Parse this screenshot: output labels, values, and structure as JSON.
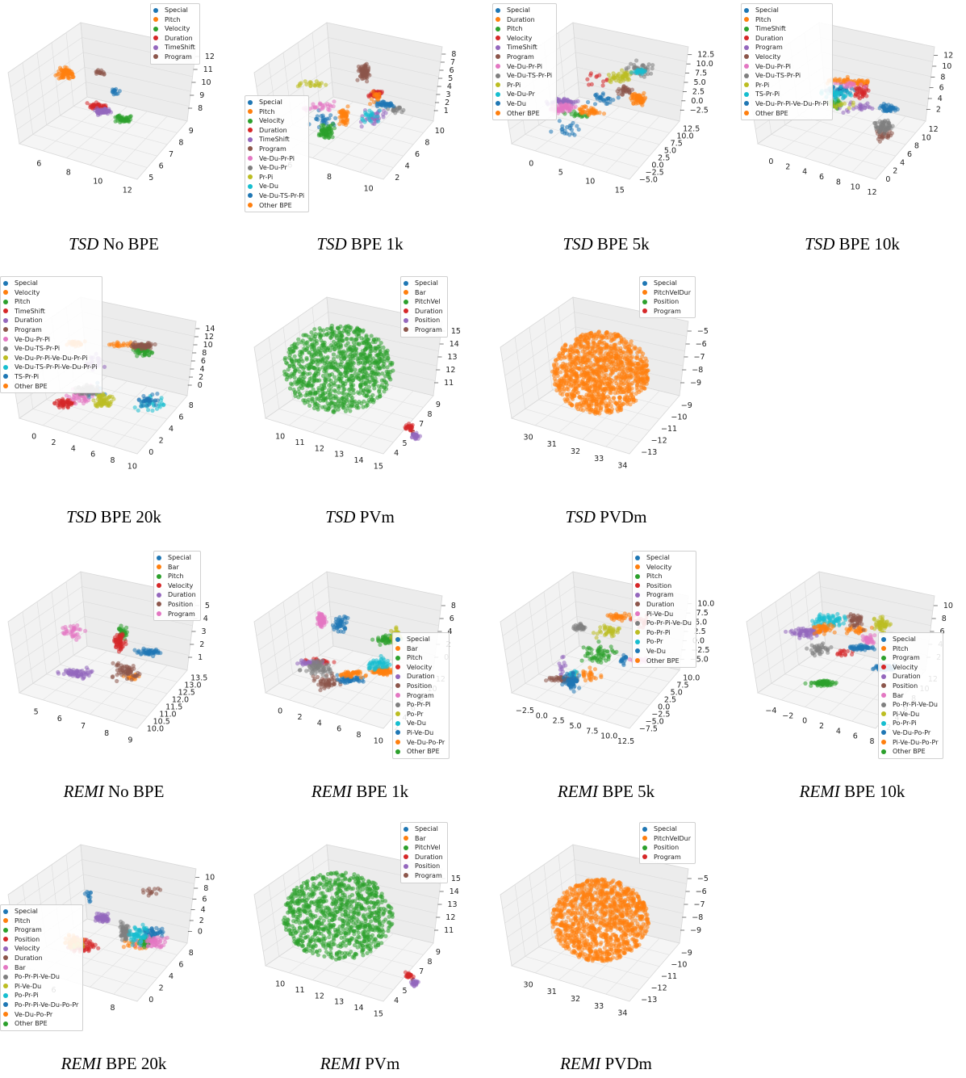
{
  "colors": {
    "palette": [
      "#1f77b4",
      "#ff7f0e",
      "#2ca02c",
      "#d62728",
      "#9467bd",
      "#8c564b",
      "#e377c2",
      "#7f7f7f",
      "#bcbd22",
      "#17becf"
    ],
    "pane_fill": "#f2f2f2",
    "grid": "#d8d8d8"
  },
  "panels": [
    {
      "caption": {
        "tokenizer": "TSD",
        "variant": "No BPE"
      },
      "legend": [
        "Special",
        "Pitch",
        "Velocity",
        "Duration",
        "TimeShift",
        "Program"
      ],
      "z_ticks": [
        "8",
        "9",
        "10",
        "11",
        "12"
      ],
      "x_ticks": [
        "6",
        "8",
        "10",
        "12"
      ],
      "y_ticks": [
        "5",
        "6",
        "7",
        "8",
        "9"
      ]
    },
    {
      "caption": {
        "tokenizer": "TSD",
        "variant": "BPE 1k"
      },
      "legend": [
        "Special",
        "Pitch",
        "Velocity",
        "Duration",
        "TimeShift",
        "Program",
        "Ve-Du-Pr-Pi",
        "Ve-Du-Pr",
        "Pr-Pi",
        "Ve-Du",
        "Ve-Du-TS-Pr-Pi",
        "Other BPE"
      ],
      "z_ticks": [
        "1",
        "2",
        "3",
        "4",
        "5",
        "6",
        "7",
        "8"
      ],
      "x_ticks": [
        "6",
        "8",
        "10"
      ],
      "y_ticks": [
        "2",
        "4",
        "6",
        "8",
        "10"
      ]
    },
    {
      "caption": {
        "tokenizer": "TSD",
        "variant": "BPE 5k"
      },
      "legend": [
        "Special",
        "Duration",
        "Pitch",
        "Velocity",
        "TimeShift",
        "Program",
        "Ve-Du-Pr-Pi",
        "Ve-Du-TS-Pr-Pi",
        "Pr-Pi",
        "Ve-Du-Pr",
        "Ve-Du",
        "Other BPE"
      ],
      "z_ticks": [
        "−2.5",
        "0.0",
        "2.5",
        "5.0",
        "7.5",
        "10.0",
        "12.5"
      ],
      "x_ticks": [
        "0",
        "5",
        "10",
        "15"
      ],
      "y_ticks": [
        "−5.0",
        "−2.5",
        "0.0",
        "2.5",
        "5.0",
        "7.5",
        "10.0",
        "12.5"
      ]
    },
    {
      "caption": {
        "tokenizer": "TSD",
        "variant": "BPE 10k"
      },
      "legend": [
        "Special",
        "Pitch",
        "TimeShift",
        "Duration",
        "Program",
        "Velocity",
        "Ve-Du-Pr-Pi",
        "Ve-Du-TS-Pr-Pi",
        "Pr-Pi",
        "TS-Pr-Pi",
        "Ve-Du-Pr-Pi-Ve-Du-Pr-Pi",
        "Other BPE"
      ],
      "z_ticks": [
        "2",
        "4",
        "6",
        "8",
        "10",
        "12"
      ],
      "x_ticks": [
        "0",
        "2",
        "4",
        "6",
        "8",
        "10",
        "12"
      ],
      "y_ticks": [
        "0",
        "2",
        "4",
        "6",
        "8",
        "10",
        "12"
      ]
    },
    {
      "caption": {
        "tokenizer": "TSD",
        "variant": "BPE 20k"
      },
      "legend": [
        "Special",
        "Velocity",
        "Pitch",
        "TimeShift",
        "Duration",
        "Program",
        "Ve-Du-Pr-Pi",
        "Ve-Du-TS-Pr-Pi",
        "Ve-Du-Pr-Pi-Ve-Du-Pr-Pi",
        "Ve-Du-TS-Pr-Pi-Ve-Du-Pr-Pi",
        "TS-Pr-Pi",
        "Other BPE"
      ],
      "z_ticks": [
        "0",
        "2",
        "4",
        "6",
        "8",
        "10",
        "12",
        "14"
      ],
      "x_ticks": [
        "0",
        "2",
        "4",
        "6",
        "8",
        "10"
      ],
      "y_ticks": [
        "0",
        "2",
        "4",
        "6",
        "8"
      ]
    },
    {
      "caption": {
        "tokenizer": "TSD",
        "variant": "PVm"
      },
      "legend": [
        "Special",
        "Bar",
        "PitchVel",
        "Duration",
        "Position",
        "Program"
      ],
      "z_ticks": [
        "11",
        "12",
        "13",
        "14",
        "15"
      ],
      "x_ticks": [
        "10",
        "11",
        "12",
        "13",
        "14",
        "15"
      ],
      "y_ticks": [
        "4",
        "5",
        "6",
        "7",
        "8",
        "9"
      ]
    },
    {
      "caption": {
        "tokenizer": "TSD",
        "variant": "PVDm"
      },
      "legend": [
        "Special",
        "PitchVelDur",
        "Position",
        "Program"
      ],
      "z_ticks": [
        "−9",
        "−8",
        "−7",
        "−6",
        "−5"
      ],
      "x_ticks": [
        "30",
        "31",
        "32",
        "33",
        "34"
      ],
      "y_ticks": [
        "−13",
        "−12",
        "−11",
        "−10",
        "−9"
      ]
    },
    {
      "caption": {
        "tokenizer": "REMI",
        "variant": "No BPE"
      },
      "legend": [
        "Special",
        "Bar",
        "Pitch",
        "Velocity",
        "Duration",
        "Position",
        "Program"
      ],
      "z_ticks": [
        "1",
        "2",
        "3",
        "4",
        "5"
      ],
      "x_ticks": [
        "5",
        "6",
        "7",
        "8",
        "9"
      ],
      "y_ticks": [
        "10.0",
        "10.5",
        "11.0",
        "11.5",
        "12.0",
        "12.5",
        "13.0",
        "13.5"
      ]
    },
    {
      "caption": {
        "tokenizer": "REMI",
        "variant": "BPE 1k"
      },
      "legend": [
        "Special",
        "Bar",
        "Pitch",
        "Velocity",
        "Duration",
        "Position",
        "Program",
        "Po-Pr-Pi",
        "Po-Pr",
        "Ve-Du",
        "Pi-Ve-Du",
        "Ve-Du-Po-Pr",
        "Other BPE"
      ],
      "z_ticks": [
        "0",
        "2",
        "4",
        "6",
        "8"
      ],
      "x_ticks": [
        "0",
        "2",
        "4",
        "6",
        "8",
        "10"
      ],
      "y_ticks": [
        "2",
        "4",
        "6",
        "8",
        "10",
        "12"
      ]
    },
    {
      "caption": {
        "tokenizer": "REMI",
        "variant": "BPE 5k"
      },
      "legend": [
        "Special",
        "Velocity",
        "Pitch",
        "Position",
        "Program",
        "Duration",
        "Pi-Ve-Du",
        "Po-Pr-Pi-Ve-Du",
        "Po-Pr-Pi",
        "Po-Pr",
        "Ve-Du",
        "Other BPE"
      ],
      "z_ticks": [
        "−5.0",
        "−2.5",
        "0.0",
        "2.5",
        "5.0",
        "7.5",
        "10.0"
      ],
      "x_ticks": [
        "−2.5",
        "0.0",
        "2.5",
        "5.0",
        "7.5",
        "10.0",
        "12.5"
      ],
      "y_ticks": [
        "−7.5",
        "−5.0",
        "−2.5",
        "0.0",
        "2.5",
        "5.0",
        "7.5",
        "10.0"
      ]
    },
    {
      "caption": {
        "tokenizer": "REMI",
        "variant": "BPE 10k"
      },
      "legend": [
        "Special",
        "Pitch",
        "Program",
        "Velocity",
        "Duration",
        "Position",
        "Bar",
        "Po-Pr-Pi-Ve-Du",
        "Pi-Ve-Du",
        "Po-Pr-Pi",
        "Ve-Du-Po-Pr",
        "Pi-Ve-Du-Po-Pr",
        "Other BPE"
      ],
      "z_ticks": [
        "2",
        "4",
        "6",
        "8",
        "10"
      ],
      "x_ticks": [
        "−4",
        "−2",
        "0",
        "2",
        "4",
        "6",
        "8"
      ],
      "y_ticks": [
        "2",
        "4",
        "6",
        "8",
        "10",
        "12"
      ]
    },
    {
      "caption": {
        "tokenizer": "REMI",
        "variant": "BPE 20k"
      },
      "legend": [
        "Special",
        "Pitch",
        "Program",
        "Position",
        "Velocity",
        "Duration",
        "Bar",
        "Po-Pr-Pi-Ve-Du",
        "Pi-Ve-Du",
        "Po-Pr-Pi",
        "Po-Pr-Pi-Ve-Du-Po-Pr",
        "Ve-Du-Po-Pr",
        "Other BPE"
      ],
      "z_ticks": [
        "0",
        "2",
        "4",
        "6",
        "8",
        "10"
      ],
      "x_ticks": [
        "6",
        "8"
      ],
      "y_ticks": [
        "0",
        "2",
        "4",
        "6",
        "8"
      ]
    },
    {
      "caption": {
        "tokenizer": "REMI",
        "variant": "PVm"
      },
      "legend": [
        "Special",
        "Bar",
        "PitchVel",
        "Duration",
        "Position",
        "Program"
      ],
      "z_ticks": [
        "11",
        "12",
        "13",
        "14",
        "15"
      ],
      "x_ticks": [
        "10",
        "11",
        "12",
        "13",
        "14",
        "15"
      ],
      "y_ticks": [
        "4",
        "5",
        "6",
        "7",
        "8",
        "9"
      ]
    },
    {
      "caption": {
        "tokenizer": "REMI",
        "variant": "PVDm"
      },
      "legend": [
        "Special",
        "PitchVelDur",
        "Position",
        "Program"
      ],
      "z_ticks": [
        "−9",
        "−8",
        "−7",
        "−6",
        "−5"
      ],
      "x_ticks": [
        "30",
        "31",
        "32",
        "33",
        "34"
      ],
      "y_ticks": [
        "−13",
        "−12",
        "−11",
        "−10",
        "−9"
      ]
    }
  ],
  "chart_data": {
    "type": "scatter",
    "subtype": "3d-embedding",
    "grid": true,
    "legend_placement": "top-right",
    "note_types": "each panel is a 3D scatter of token embeddings, colored by token type listed in its legend"
  }
}
